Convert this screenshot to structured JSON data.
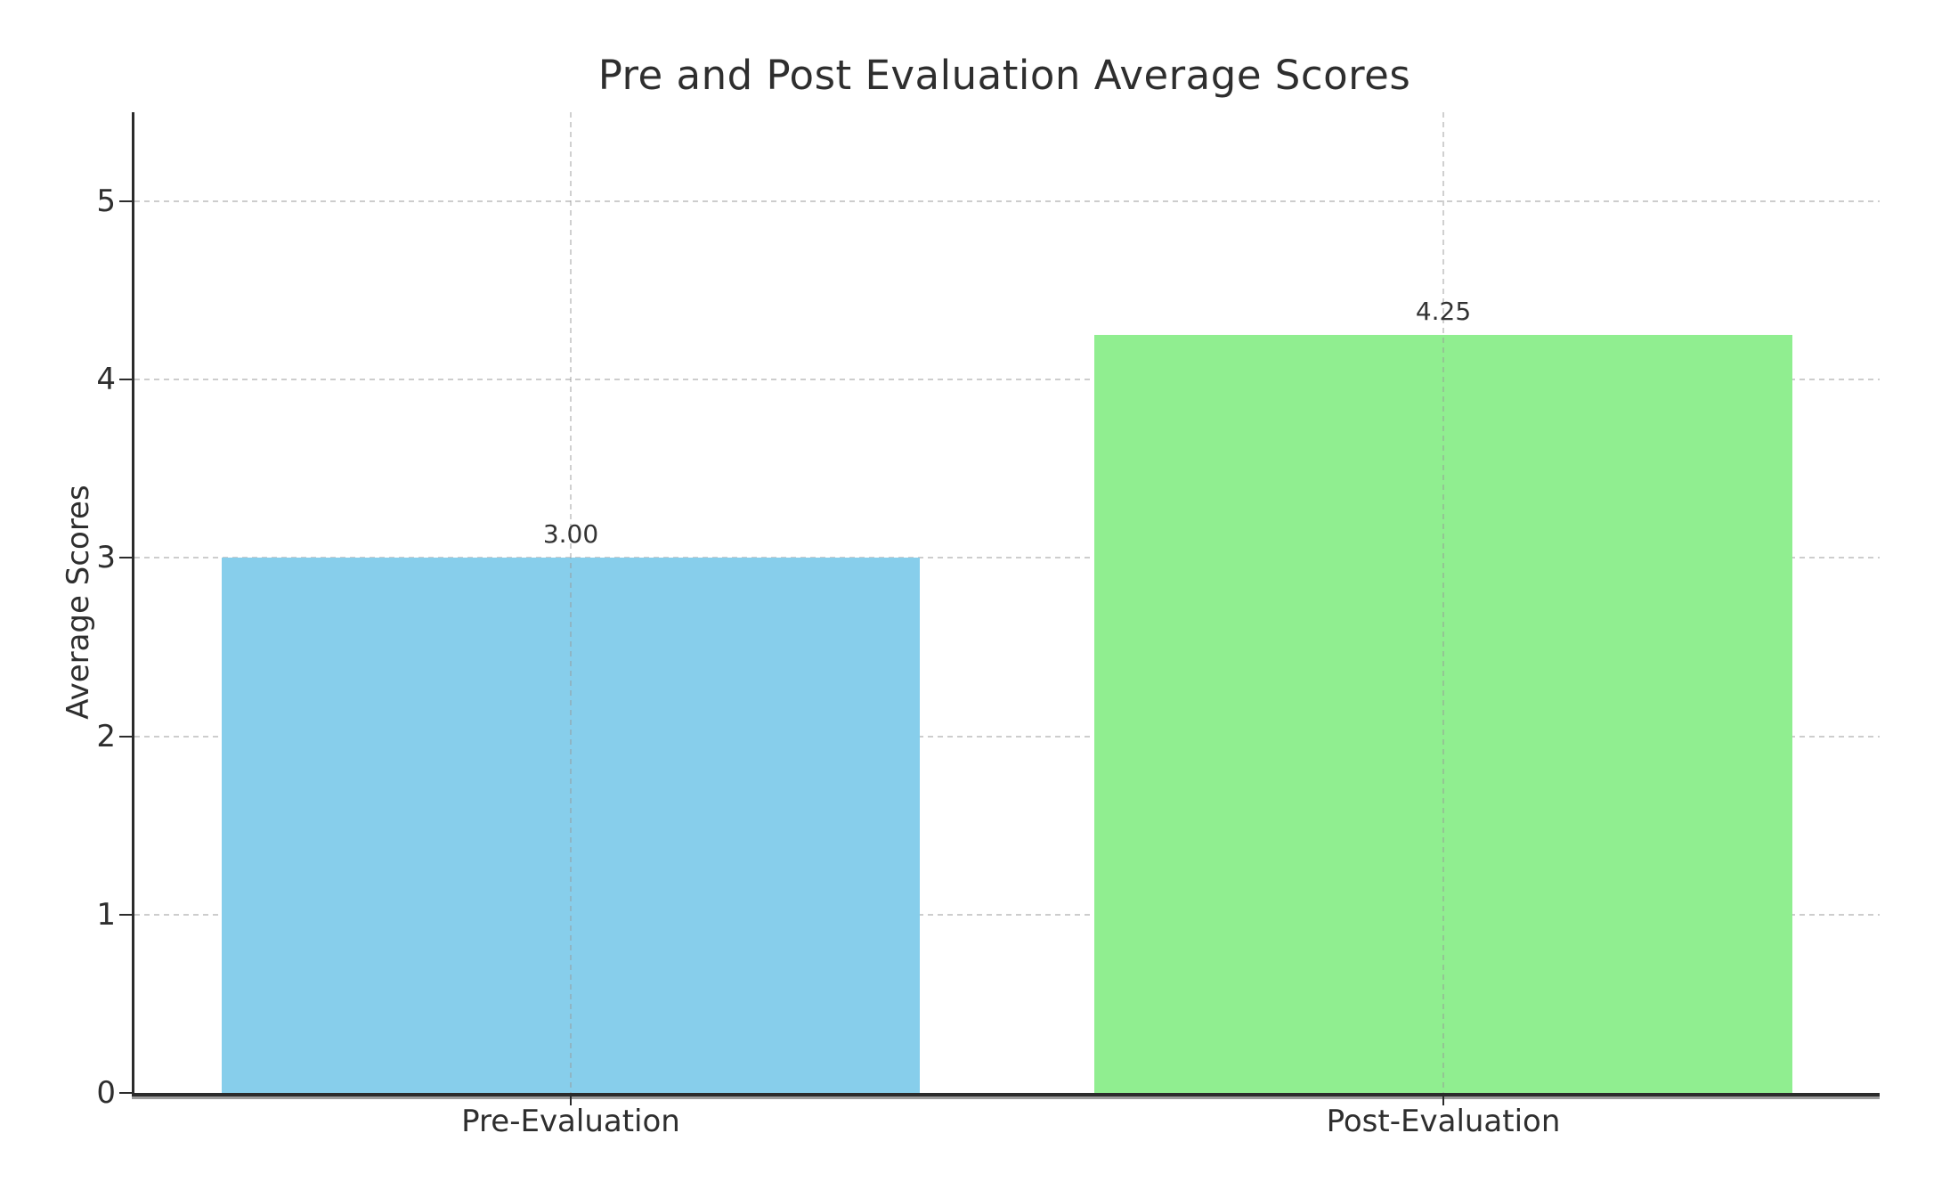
{
  "chart_data": {
    "type": "bar",
    "title": "Pre and Post Evaluation Average Scores",
    "xlabel": "",
    "ylabel": "Average Scores",
    "categories": [
      "Pre-Evaluation",
      "Post-Evaluation"
    ],
    "values": [
      3.0,
      4.25
    ],
    "value_labels": [
      "3.00",
      "4.25"
    ],
    "bar_colors": [
      "#87CEEB",
      "#90EE90"
    ],
    "ylim": [
      0,
      5.5
    ],
    "ytick_values": [
      0,
      1,
      2,
      3,
      4,
      5
    ],
    "ytick_labels": [
      "0",
      "1",
      "2",
      "3",
      "4",
      "5"
    ],
    "bar_width_fraction": 0.8,
    "grid": "dashed, horizontal at each y tick and vertical at each category center",
    "legend": "none",
    "grid_color": "#cdcdcd",
    "axis_color": "#2b2b2b",
    "text_color": "#2e2e2e",
    "background_color": "#ffffff"
  }
}
